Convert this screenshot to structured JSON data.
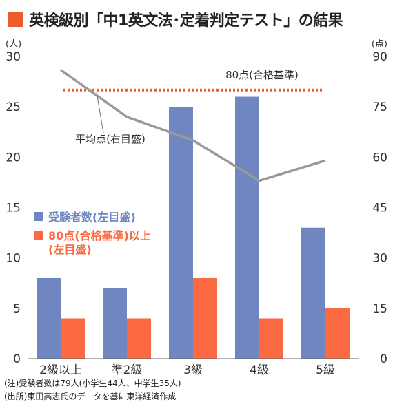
{
  "title": "英検級別「中1英文法･定着判定テスト」の結果",
  "colors": {
    "title_marker": "#f15a29",
    "examinees": "#6f86c1",
    "passers": "#fb6a42",
    "average_line": "#999999",
    "threshold_line": "#f15a29"
  },
  "chart_data": {
    "type": "bar",
    "categories": [
      "2級以上",
      "準2級",
      "3級",
      "4級",
      "5級"
    ],
    "left_axis": {
      "unit": "(人)",
      "range": [
        0,
        30
      ],
      "ticks": [
        "0",
        "5",
        "10",
        "15",
        "20",
        "25",
        "30"
      ]
    },
    "right_axis": {
      "unit": "(点)",
      "range": [
        0,
        90
      ],
      "ticks": [
        "0",
        "15",
        "30",
        "45",
        "60",
        "75",
        "90"
      ]
    },
    "series": [
      {
        "name": "受験者数(左目盛)",
        "type": "bar",
        "axis": "left",
        "values": [
          8,
          7,
          25,
          26,
          13
        ]
      },
      {
        "name": "80点(合格基準)以上(左目盛)",
        "type": "bar",
        "axis": "left",
        "values": [
          4,
          4,
          8,
          4,
          5
        ]
      },
      {
        "name": "平均点(右目盛)",
        "type": "line",
        "axis": "right",
        "values": [
          86,
          72,
          65,
          53,
          59
        ]
      }
    ],
    "reference_line": {
      "label": "80点(合格基準)",
      "value": 80,
      "axis": "right"
    },
    "legend": {
      "placement": "left-middle",
      "items": [
        {
          "label": "受験者数(左目盛)",
          "color": "#6f86c1"
        },
        {
          "label": "80点(合格基準)以上",
          "label2": "(左目盛)",
          "color": "#fb6a42"
        }
      ]
    },
    "annotation_average": "平均点(右目盛)",
    "grid": false
  },
  "notes": [
    "(注)受験者数は79人(小学生44人、中学生35人)",
    "(出所)東田高志氏のデータを基に東洋経済作成"
  ]
}
